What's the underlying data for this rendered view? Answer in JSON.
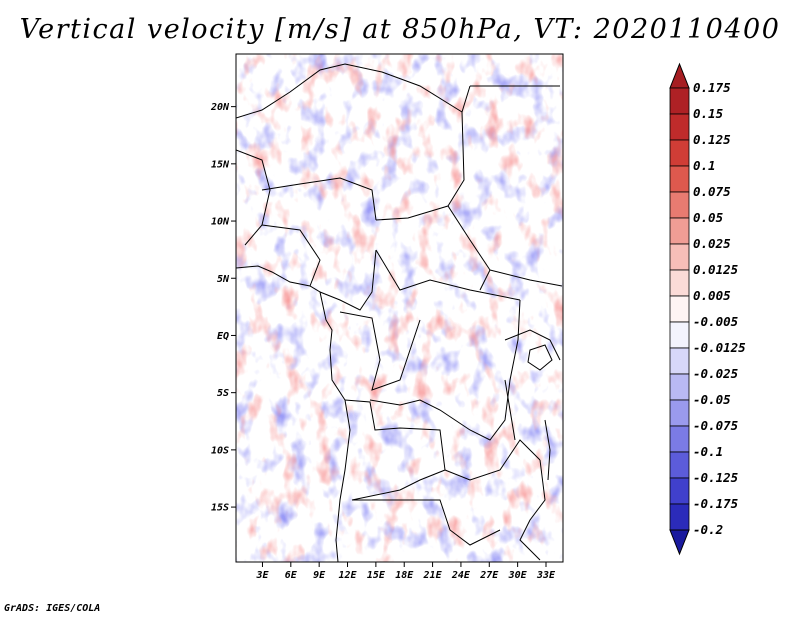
{
  "title": "Vertical velocity [m/s] at 850hPa, VT: 2020110400",
  "footer": "GrADS: IGES/COLA",
  "map": {
    "lat_labels": [
      {
        "lat": 20,
        "label": "20N"
      },
      {
        "lat": 15,
        "label": "15N"
      },
      {
        "lat": 10,
        "label": "10N"
      },
      {
        "lat": 5,
        "label": "5N"
      },
      {
        "lat": 0,
        "label": "EQ"
      },
      {
        "lat": -5,
        "label": "5S"
      },
      {
        "lat": -10,
        "label": "10S"
      },
      {
        "lat": -15,
        "label": "15S"
      }
    ],
    "lon_labels": [
      {
        "lon": 3,
        "label": "3E"
      },
      {
        "lon": 6,
        "label": "6E"
      },
      {
        "lon": 9,
        "label": "9E"
      },
      {
        "lon": 12,
        "label": "12E"
      },
      {
        "lon": 15,
        "label": "15E"
      },
      {
        "lon": 18,
        "label": "18E"
      },
      {
        "lon": 21,
        "label": "21E"
      },
      {
        "lon": 24,
        "label": "24E"
      },
      {
        "lon": 27,
        "label": "27E"
      },
      {
        "lon": 30,
        "label": "30E"
      },
      {
        "lon": 33,
        "label": "33E"
      }
    ],
    "lon_range": [
      0.2,
      34.8
    ],
    "lat_range": [
      -19.8,
      24.6
    ]
  },
  "colorbar": {
    "levels": [
      {
        "label": "0.175",
        "color": "#a61e22"
      },
      {
        "label": "0.15",
        "color": "#b52427"
      },
      {
        "label": "0.125",
        "color": "#c8322e"
      },
      {
        "label": "0.1",
        "color": "#d8473d"
      },
      {
        "label": "0.075",
        "color": "#e46a5f"
      },
      {
        "label": "0.05",
        "color": "#ec8b82"
      },
      {
        "label": "0.025",
        "color": "#f4aea7"
      },
      {
        "label": "0.0125",
        "color": "#f9cdc8"
      },
      {
        "label": "0.005",
        "color": "#fde8e6"
      },
      {
        "label": "-0.005",
        "color": "#ffffff"
      },
      {
        "label": "-0.0125",
        "color": "#e6e6fb"
      },
      {
        "label": "-0.025",
        "color": "#c8c8f6"
      },
      {
        "label": "-0.05",
        "color": "#a9a9f0"
      },
      {
        "label": "-0.075",
        "color": "#8a8aea"
      },
      {
        "label": "-0.1",
        "color": "#6b6be0"
      },
      {
        "label": "-0.125",
        "color": "#4d4dd4"
      },
      {
        "label": "-0.175",
        "color": "#3333c4"
      },
      {
        "label": "-0.2",
        "color": "#2222b0"
      }
    ],
    "top_arrow_color": "#a61e22",
    "bottom_arrow_color": "#1a1a9e"
  }
}
